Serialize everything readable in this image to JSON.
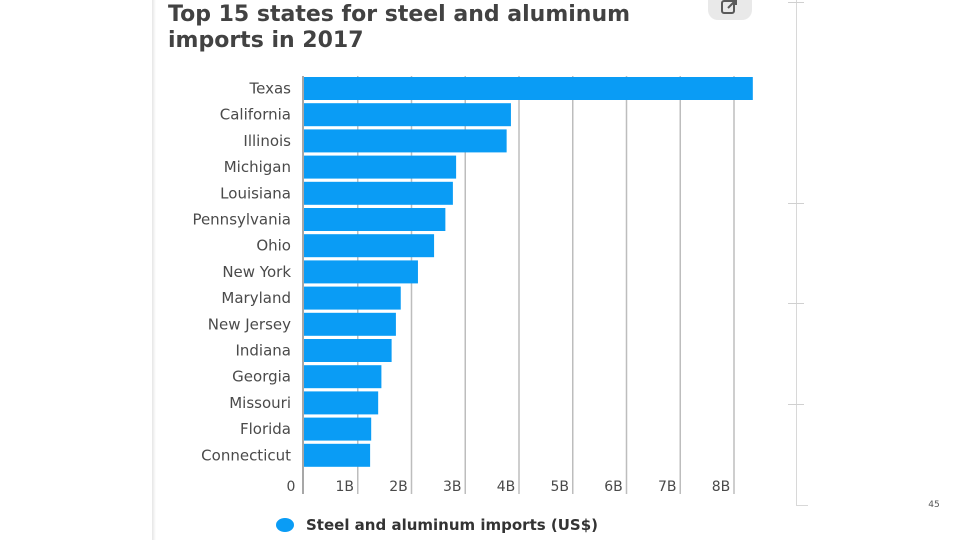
{
  "chart_data": {
    "type": "bar",
    "orientation": "horizontal",
    "title": "Top 15 states for steel and aluminum imports in 2017",
    "categories": [
      "Texas",
      "California",
      "Illinois",
      "Michigan",
      "Louisiana",
      "Pennsylvania",
      "Ohio",
      "New York",
      "Maryland",
      "New Jersey",
      "Indiana",
      "Georgia",
      "Missouri",
      "Florida",
      "Connecticut"
    ],
    "series": [
      {
        "name": "Steel and aluminum imports (US$)",
        "color": "#0a9cf5",
        "values": [
          8.35,
          3.85,
          3.77,
          2.83,
          2.77,
          2.63,
          2.42,
          2.12,
          1.8,
          1.71,
          1.63,
          1.44,
          1.38,
          1.25,
          1.23
        ]
      }
    ],
    "x_ticks": [
      {
        "value": 0,
        "label": "0"
      },
      {
        "value": 1,
        "label": "1B"
      },
      {
        "value": 2,
        "label": "2B"
      },
      {
        "value": 3,
        "label": "3B"
      },
      {
        "value": 4,
        "label": "4B"
      },
      {
        "value": 5,
        "label": "5B"
      },
      {
        "value": 6,
        "label": "6B"
      },
      {
        "value": 7,
        "label": "7B"
      },
      {
        "value": 8,
        "label": "8B"
      }
    ],
    "x_unit": "billion US$",
    "xlim": [
      0,
      8.5
    ],
    "grid": true,
    "legend_position": "bottom"
  },
  "page_number": "45",
  "icons": {
    "share": "share-icon"
  }
}
